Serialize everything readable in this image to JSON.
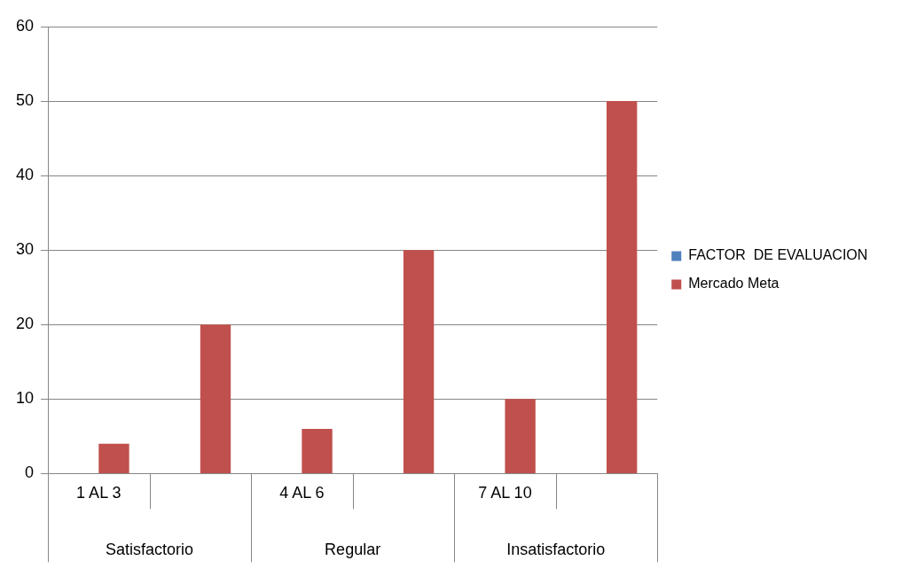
{
  "chart_data": {
    "type": "bar",
    "categories": [
      "1 AL 3",
      null,
      "4 AL 6",
      null,
      "7 AL 10",
      null
    ],
    "series": [
      {
        "name": "FACTOR  DE EVALUACION",
        "color": "#4f81bd",
        "values": [
          null,
          null,
          null,
          null,
          null,
          null
        ]
      },
      {
        "name": "Mercado Meta",
        "color": "#c0504d",
        "values": [
          4,
          20,
          6,
          30,
          10,
          50
        ]
      }
    ],
    "annotations": [
      "Satisfactorio",
      "Regular",
      "Insatisfactorio"
    ],
    "ylim": [
      0,
      60
    ],
    "yticks": [
      0,
      10,
      20,
      30,
      40,
      50,
      60
    ],
    "grid": "y",
    "legend": "right"
  }
}
